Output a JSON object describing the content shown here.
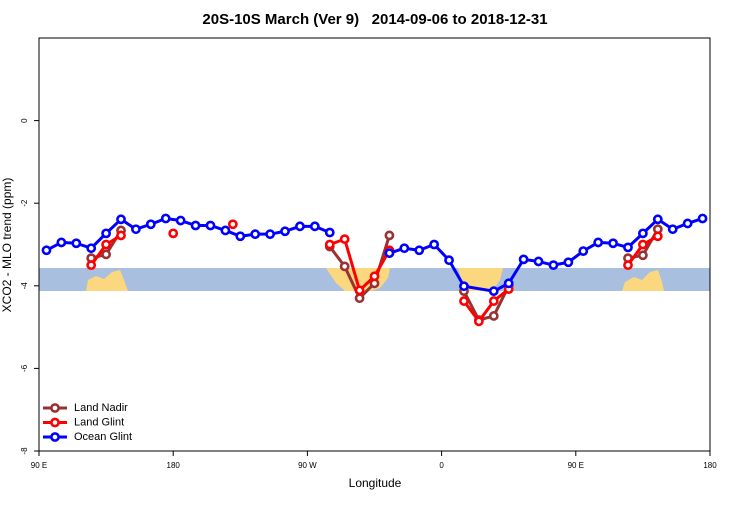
{
  "chart_data": {
    "type": "line",
    "title": "20S-10S March (Ver 9)   2014-09-06 to 2018-12-31",
    "xlabel": "Longitude",
    "ylabel": "XCO2 - MLO trend (ppm)",
    "xlim": [
      90,
      540
    ],
    "ylim": [
      -8,
      2
    ],
    "xticks": [
      {
        "value": 90,
        "label": "90 E"
      },
      180,
      {
        "value": 270,
        "label": "90 W"
      },
      {
        "value": 360,
        "label": "0"
      },
      {
        "value": 450,
        "label": "90 E"
      },
      {
        "value": 540,
        "label": "180"
      }
    ],
    "yticks": [
      0,
      -2,
      -4,
      -6,
      -8
    ],
    "legend": "lower left",
    "series": [
      {
        "name": "Land Nadir",
        "color": "#993333",
        "x": [
          125,
          135,
          145,
          155,
          285,
          295,
          305,
          315,
          325,
          335,
          375,
          385,
          395,
          405,
          415,
          485,
          495,
          505
        ],
        "values": [
          -3.33,
          -3.24,
          -2.66,
          null,
          -3.05,
          -3.53,
          -4.3,
          -3.94,
          -2.78,
          null,
          -4.13,
          -4.83,
          -4.73,
          -4.0,
          null,
          -3.33,
          -3.26,
          -2.63
        ]
      },
      {
        "name": "Land Glint",
        "color": "#ff0000",
        "x": [
          125,
          135,
          145,
          155,
          180,
          190,
          220,
          230,
          285,
          295,
          305,
          315,
          325,
          335,
          375,
          385,
          395,
          405,
          415,
          485,
          495,
          505
        ],
        "values": [
          -3.5,
          -3.0,
          -2.78,
          null,
          -2.73,
          null,
          -2.51,
          null,
          -3.0,
          -2.87,
          -4.11,
          -3.77,
          -3.14,
          null,
          -4.37,
          -4.86,
          -4.37,
          -4.08,
          null,
          -3.5,
          -3.0,
          -2.8
        ]
      },
      {
        "name": "Ocean Glint",
        "color": "#0000ff",
        "x": [
          95,
          105,
          115,
          125,
          135,
          145,
          155,
          165,
          175,
          185,
          195,
          205,
          215,
          225,
          235,
          245,
          255,
          265,
          275,
          285,
          295,
          325,
          335,
          345,
          355,
          365,
          375,
          395,
          405,
          415,
          425,
          435,
          445,
          455,
          465,
          475,
          485,
          495,
          505,
          515,
          525,
          535
        ],
        "values": [
          -3.14,
          -2.95,
          -2.97,
          -3.09,
          -2.73,
          -2.39,
          -2.63,
          -2.51,
          -2.37,
          -2.42,
          -2.54,
          -2.54,
          -2.66,
          -2.8,
          -2.75,
          -2.75,
          -2.68,
          -2.56,
          -2.56,
          -2.71,
          null,
          -3.21,
          -3.09,
          -3.14,
          -3.0,
          -3.38,
          -4.01,
          -4.13,
          -3.94,
          -3.36,
          -3.41,
          -3.5,
          -3.43,
          -3.16,
          -2.95,
          -2.97,
          -3.07,
          -2.73,
          -2.39,
          -2.63,
          -2.49,
          -2.37
        ]
      }
    ]
  }
}
